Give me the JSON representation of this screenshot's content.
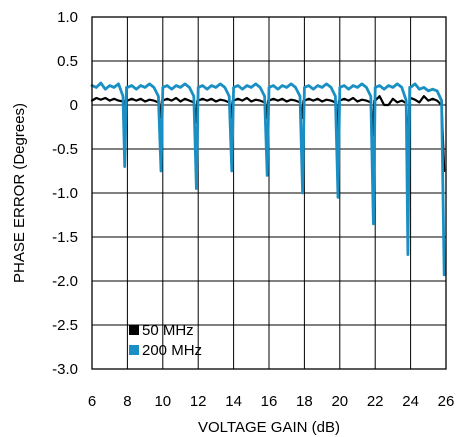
{
  "chart_data": {
    "type": "line",
    "xlabel": "VOLTAGE GAIN (dB)",
    "ylabel": "PHASE ERROR (Degrees)",
    "xlim": [
      6,
      26
    ],
    "ylim": [
      -3.0,
      1.0
    ],
    "x_ticks": [
      "6",
      "8",
      "10",
      "12",
      "14",
      "16",
      "18",
      "20",
      "22",
      "24",
      "26"
    ],
    "y_ticks": [
      "1.0",
      "0.5",
      "0",
      "-0.5",
      "-1.0",
      "-1.5",
      "-2.0",
      "-2.5",
      "-3.0"
    ],
    "grid": true,
    "legend_position": "bottom-left",
    "series": [
      {
        "name": "50 MHz",
        "color": "#000000",
        "points": [
          [
            6.0,
            0.05
          ],
          [
            6.25,
            0.08
          ],
          [
            6.5,
            0.06
          ],
          [
            6.75,
            0.08
          ],
          [
            7.0,
            0.05
          ],
          [
            7.25,
            0.07
          ],
          [
            7.5,
            0.05
          ],
          [
            7.75,
            0.04
          ],
          [
            7.8,
            -0.15
          ],
          [
            7.9,
            0.05
          ],
          [
            8.0,
            0.05
          ],
          [
            8.25,
            0.07
          ],
          [
            8.5,
            0.05
          ],
          [
            8.75,
            0.07
          ],
          [
            9.0,
            0.04
          ],
          [
            9.25,
            0.06
          ],
          [
            9.5,
            0.05
          ],
          [
            9.75,
            0.03
          ],
          [
            9.85,
            -0.15
          ],
          [
            9.95,
            0.05
          ],
          [
            10.0,
            0.05
          ],
          [
            10.25,
            0.07
          ],
          [
            10.5,
            0.05
          ],
          [
            10.75,
            0.08
          ],
          [
            11.0,
            0.04
          ],
          [
            11.25,
            0.07
          ],
          [
            11.5,
            0.05
          ],
          [
            11.75,
            0.03
          ],
          [
            11.85,
            -0.2
          ],
          [
            11.95,
            0.05
          ],
          [
            12.0,
            0.05
          ],
          [
            12.25,
            0.07
          ],
          [
            12.5,
            0.05
          ],
          [
            12.75,
            0.07
          ],
          [
            13.0,
            0.04
          ],
          [
            13.25,
            0.06
          ],
          [
            13.5,
            0.05
          ],
          [
            13.75,
            0.03
          ],
          [
            13.85,
            -0.15
          ],
          [
            13.95,
            0.05
          ],
          [
            14.0,
            0.05
          ],
          [
            14.25,
            0.07
          ],
          [
            14.5,
            0.05
          ],
          [
            14.75,
            0.08
          ],
          [
            15.0,
            0.04
          ],
          [
            15.25,
            0.06
          ],
          [
            15.5,
            0.05
          ],
          [
            15.75,
            0.03
          ],
          [
            15.85,
            -0.15
          ],
          [
            15.95,
            0.05
          ],
          [
            16.0,
            0.05
          ],
          [
            16.25,
            0.07
          ],
          [
            16.5,
            0.05
          ],
          [
            16.75,
            0.07
          ],
          [
            17.0,
            0.04
          ],
          [
            17.25,
            0.06
          ],
          [
            17.5,
            0.05
          ],
          [
            17.75,
            0.03
          ],
          [
            17.85,
            -0.15
          ],
          [
            17.95,
            0.05
          ],
          [
            18.0,
            0.05
          ],
          [
            18.25,
            0.07
          ],
          [
            18.5,
            0.05
          ],
          [
            18.75,
            0.07
          ],
          [
            19.0,
            0.04
          ],
          [
            19.25,
            0.06
          ],
          [
            19.5,
            0.05
          ],
          [
            19.75,
            0.03
          ],
          [
            19.85,
            -0.3
          ],
          [
            19.95,
            0.05
          ],
          [
            20.0,
            0.05
          ],
          [
            20.25,
            0.07
          ],
          [
            20.5,
            0.05
          ],
          [
            20.75,
            0.08
          ],
          [
            21.0,
            0.04
          ],
          [
            21.25,
            0.06
          ],
          [
            21.5,
            0.05
          ],
          [
            21.75,
            0.03
          ],
          [
            21.85,
            -0.35
          ],
          [
            21.95,
            0.05
          ],
          [
            22.0,
            0.05
          ],
          [
            22.25,
            0.1
          ],
          [
            22.5,
            0.0
          ],
          [
            22.75,
            0.0
          ],
          [
            23.0,
            0.07
          ],
          [
            23.25,
            0.03
          ],
          [
            23.5,
            0.05
          ],
          [
            23.75,
            0.02
          ],
          [
            23.85,
            -0.5
          ],
          [
            23.95,
            0.08
          ],
          [
            24.0,
            0.08
          ],
          [
            24.25,
            0.06
          ],
          [
            24.5,
            0.03
          ],
          [
            24.75,
            0.1
          ],
          [
            25.0,
            0.05
          ],
          [
            25.25,
            0.07
          ],
          [
            25.5,
            0.05
          ],
          [
            25.75,
            0.0
          ],
          [
            25.9,
            -0.75
          ]
        ]
      },
      {
        "name": "200 MHz",
        "color": "#1a8fc4",
        "points": [
          [
            6.0,
            0.22
          ],
          [
            6.25,
            0.2
          ],
          [
            6.5,
            0.25
          ],
          [
            6.75,
            0.18
          ],
          [
            7.0,
            0.22
          ],
          [
            7.25,
            0.2
          ],
          [
            7.5,
            0.24
          ],
          [
            7.75,
            0.1
          ],
          [
            7.85,
            -0.7
          ],
          [
            7.95,
            0.2
          ],
          [
            8.0,
            0.2
          ],
          [
            8.25,
            0.22
          ],
          [
            8.5,
            0.18
          ],
          [
            8.75,
            0.22
          ],
          [
            9.0,
            0.2
          ],
          [
            9.25,
            0.24
          ],
          [
            9.5,
            0.2
          ],
          [
            9.75,
            0.1
          ],
          [
            9.9,
            -0.75
          ],
          [
            10.0,
            0.2
          ],
          [
            10.25,
            0.22
          ],
          [
            10.5,
            0.18
          ],
          [
            10.75,
            0.22
          ],
          [
            11.0,
            0.2
          ],
          [
            11.25,
            0.24
          ],
          [
            11.5,
            0.2
          ],
          [
            11.75,
            0.1
          ],
          [
            11.9,
            -0.95
          ],
          [
            12.0,
            0.2
          ],
          [
            12.25,
            0.22
          ],
          [
            12.5,
            0.18
          ],
          [
            12.75,
            0.22
          ],
          [
            13.0,
            0.2
          ],
          [
            13.25,
            0.24
          ],
          [
            13.5,
            0.2
          ],
          [
            13.75,
            0.1
          ],
          [
            13.9,
            -0.75
          ],
          [
            14.0,
            0.2
          ],
          [
            14.25,
            0.22
          ],
          [
            14.5,
            0.18
          ],
          [
            14.75,
            0.22
          ],
          [
            15.0,
            0.2
          ],
          [
            15.25,
            0.24
          ],
          [
            15.5,
            0.2
          ],
          [
            15.75,
            0.1
          ],
          [
            15.9,
            -0.8
          ],
          [
            16.0,
            0.2
          ],
          [
            16.25,
            0.22
          ],
          [
            16.5,
            0.18
          ],
          [
            16.75,
            0.22
          ],
          [
            17.0,
            0.2
          ],
          [
            17.25,
            0.24
          ],
          [
            17.5,
            0.2
          ],
          [
            17.75,
            0.1
          ],
          [
            17.9,
            -1.0
          ],
          [
            18.0,
            0.2
          ],
          [
            18.25,
            0.22
          ],
          [
            18.5,
            0.18
          ],
          [
            18.75,
            0.22
          ],
          [
            19.0,
            0.2
          ],
          [
            19.25,
            0.24
          ],
          [
            19.5,
            0.2
          ],
          [
            19.75,
            0.1
          ],
          [
            19.9,
            -1.05
          ],
          [
            20.0,
            0.2
          ],
          [
            20.25,
            0.22
          ],
          [
            20.5,
            0.18
          ],
          [
            20.75,
            0.22
          ],
          [
            21.0,
            0.2
          ],
          [
            21.25,
            0.24
          ],
          [
            21.5,
            0.2
          ],
          [
            21.75,
            0.1
          ],
          [
            21.9,
            -1.35
          ],
          [
            22.0,
            0.2
          ],
          [
            22.25,
            0.22
          ],
          [
            22.5,
            0.18
          ],
          [
            22.75,
            0.22
          ],
          [
            23.0,
            0.2
          ],
          [
            23.25,
            0.24
          ],
          [
            23.5,
            0.2
          ],
          [
            23.75,
            0.05
          ],
          [
            23.85,
            -1.7
          ],
          [
            23.95,
            0.2
          ],
          [
            24.0,
            0.2
          ],
          [
            24.25,
            0.24
          ],
          [
            24.5,
            0.18
          ],
          [
            24.75,
            0.2
          ],
          [
            25.0,
            0.16
          ],
          [
            25.25,
            0.18
          ],
          [
            25.5,
            0.16
          ],
          [
            25.75,
            0.05
          ],
          [
            25.9,
            -1.93
          ]
        ]
      }
    ]
  }
}
